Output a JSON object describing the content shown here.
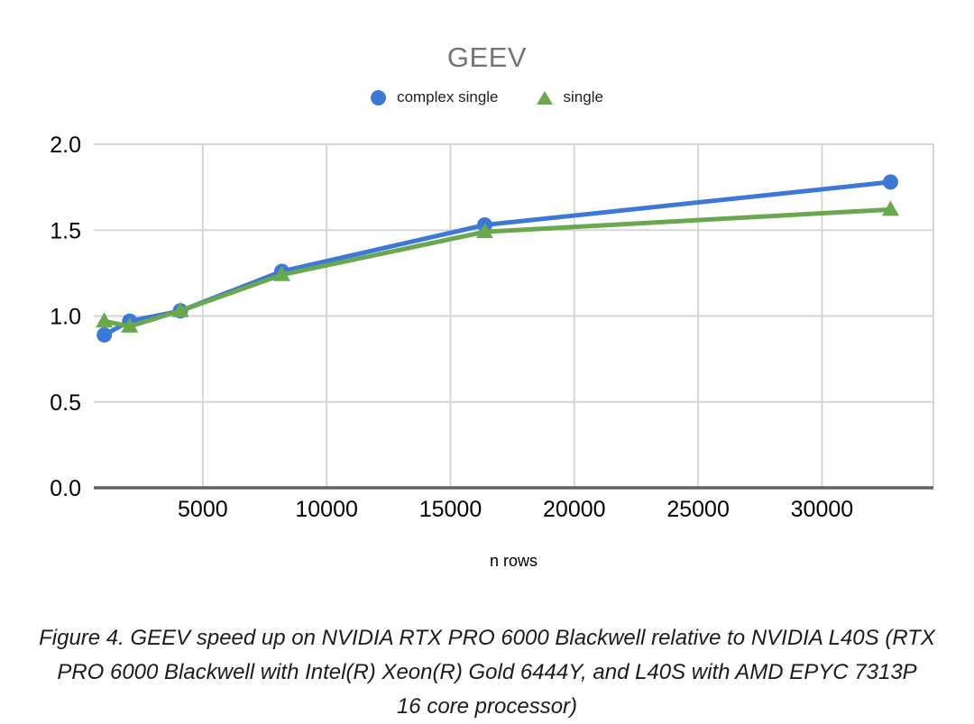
{
  "chart_data": {
    "type": "line",
    "title": "GEEV",
    "xlabel": "n rows",
    "ylabel": "",
    "x": [
      1024,
      2048,
      4096,
      8192,
      16384,
      32768
    ],
    "series": [
      {
        "name": "complex single",
        "marker": "circle",
        "color": "#3C78D8",
        "values": [
          0.89,
          0.97,
          1.03,
          1.26,
          1.53,
          1.78
        ]
      },
      {
        "name": "single",
        "marker": "triangle",
        "color": "#6AA84F",
        "values": [
          0.97,
          0.94,
          1.03,
          1.24,
          1.49,
          1.62
        ]
      }
    ],
    "xlim": [
      600,
      34500
    ],
    "ylim": [
      0,
      2
    ],
    "x_ticks": [
      5000,
      10000,
      15000,
      20000,
      25000,
      30000
    ],
    "x_tick_labels": [
      "5000",
      "10000",
      "15000",
      "20000",
      "25000",
      "30000"
    ],
    "y_ticks": [
      0,
      0.5,
      1,
      1.5,
      2
    ],
    "y_tick_labels": [
      "0.0",
      "0.5",
      "1.0",
      "1.5",
      "2.0"
    ],
    "grid": true,
    "legend_position": "top",
    "gridline_color": "#d6d6d6",
    "baseline_color": "#5f6368",
    "tick_label_color": "#000000",
    "title_color": "#757575"
  },
  "caption": {
    "lines": [
      "Figure 4. GEEV speed up on NVIDIA RTX PRO 6000 Blackwell relative to NVIDIA L40S (RTX",
      "PRO 6000 Blackwell with Intel(R) Xeon(R) Gold 6444Y, and L40S with AMD EPYC 7313P",
      "16 core processor)"
    ]
  }
}
